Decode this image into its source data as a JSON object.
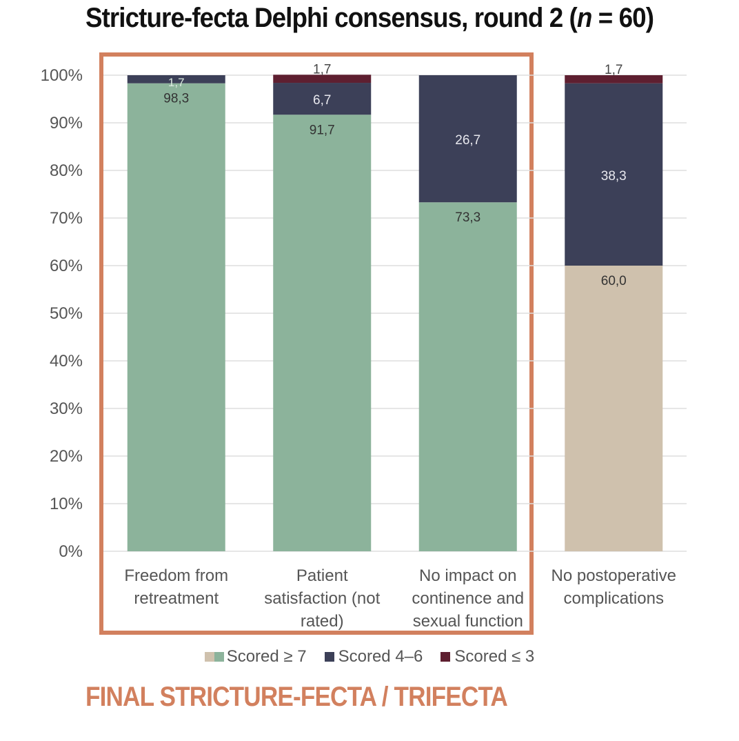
{
  "title_prefix": "Stricture-fecta Delphi consensus, round 2 (",
  "title_n": "n",
  "title_suffix": " = 60)",
  "footer": "FINAL STRICTURE-FECTA / TRIFECTA",
  "colors": {
    "scored_high_green": "#8cb39b",
    "scored_high_tan": "#cfc1ad",
    "scored_mid": "#3c4058",
    "scored_low": "#5e1f30",
    "frame": "#d2805e",
    "grid": "#dddddd",
    "axis_text": "#555555"
  },
  "chart_data": {
    "type": "bar",
    "stacked": true,
    "categories": [
      [
        "Freedom from",
        "retreatment"
      ],
      [
        "Patient",
        "satisfaction (not",
        "rated)"
      ],
      [
        "No impact on",
        "continence and",
        "sexual function"
      ],
      [
        "No postoperative",
        "complications"
      ]
    ],
    "series": [
      {
        "name": "Scored ≥ 7",
        "values": [
          98.3,
          91.7,
          73.3,
          60.0
        ],
        "labels": [
          "98,3",
          "91,7",
          "73,3",
          "60,0"
        ]
      },
      {
        "name": "Scored 4–6",
        "values": [
          1.7,
          6.7,
          26.7,
          38.3
        ],
        "labels": [
          "1,7",
          "6,7",
          "26,7",
          "38,3"
        ]
      },
      {
        "name": "Scored ≤ 3",
        "values": [
          0,
          1.7,
          0,
          1.7
        ],
        "labels": [
          "",
          "1,7",
          "",
          "1,7"
        ]
      }
    ],
    "ylim": [
      0,
      100
    ],
    "yticks": [
      "0%",
      "10%",
      "20%",
      "30%",
      "40%",
      "50%",
      "60%",
      "70%",
      "80%",
      "90%",
      "100%"
    ],
    "grid": true,
    "legend_position": "bottom",
    "highlighted_categories": [
      0,
      1,
      2
    ]
  }
}
